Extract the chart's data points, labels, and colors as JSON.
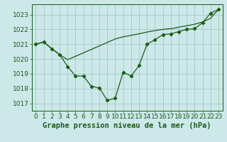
{
  "title": "Graphe pression niveau de la mer (hPa)",
  "background_color": "#cce8e8",
  "grid_color": "#aacccc",
  "line_color": "#1a5c1a",
  "xlim": [
    -0.5,
    23.5
  ],
  "ylim": [
    1016.5,
    1023.7
  ],
  "yticks": [
    1017,
    1018,
    1019,
    1020,
    1021,
    1022,
    1023
  ],
  "xticks": [
    0,
    1,
    2,
    3,
    4,
    5,
    6,
    7,
    8,
    9,
    10,
    11,
    12,
    13,
    14,
    15,
    16,
    17,
    18,
    19,
    20,
    21,
    22,
    23
  ],
  "xlabel_fontsize": 7.5,
  "tick_fontsize": 6.5,
  "series_main_x": [
    0,
    1,
    2,
    3,
    4,
    5,
    6,
    7,
    8,
    9,
    10,
    11,
    12,
    13,
    14,
    15,
    16,
    17,
    18,
    19,
    20,
    21,
    22,
    23
  ],
  "series_main_y": [
    1021.0,
    1021.15,
    1020.7,
    1020.3,
    1019.5,
    1018.85,
    1018.85,
    1018.15,
    1018.05,
    1017.2,
    1017.35,
    1019.1,
    1018.85,
    1019.55,
    1021.0,
    1021.3,
    1021.65,
    1021.7,
    1021.85,
    1022.0,
    1022.05,
    1022.45,
    1023.1,
    1023.35
  ],
  "series_trend_x": [
    0,
    1,
    2,
    3,
    4,
    10,
    11,
    12,
    13,
    14,
    15,
    16,
    17,
    18,
    19,
    20,
    21,
    22,
    23
  ],
  "series_trend_y": [
    1021.0,
    1021.15,
    1020.7,
    1020.3,
    1019.95,
    1021.35,
    1021.5,
    1021.6,
    1021.7,
    1021.82,
    1021.92,
    1022.0,
    1022.05,
    1022.15,
    1022.25,
    1022.35,
    1022.5,
    1022.75,
    1023.35
  ]
}
